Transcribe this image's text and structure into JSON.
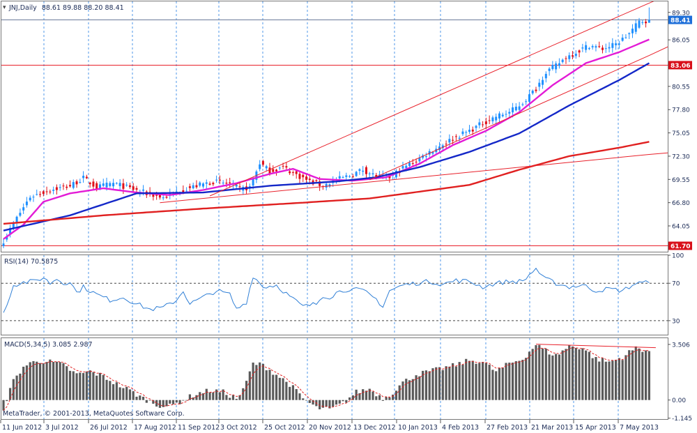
{
  "window": {
    "symbol_title": "JNJ,Daily",
    "ohlc_text": "88.61 89.88 88.20 88.41",
    "copyright": "MetaTrader, © 2001-2013, MetaQuotes Software Corp."
  },
  "colors": {
    "bull": "#1E90FF",
    "bear": "#E0101A",
    "ma_fast": "#E31BD6",
    "ma_mid": "#1428C8",
    "ma_slow": "#E02020",
    "trendline": "#E8202A",
    "grid": "#3C8CE6",
    "rsi_line": "#2F7FD6",
    "histogram": "#5A5A5A",
    "signal": "#E02020",
    "axis_text": "#1F3C7A"
  },
  "chart_data": [
    {
      "panel": "price",
      "type": "candlestick",
      "title": "JNJ,Daily",
      "values_text": "88.61 89.88 88.20 88.41",
      "y_ticks": [
        "89.30",
        "86.05",
        "83.06",
        "80.55",
        "77.80",
        "75.05",
        "72.30",
        "69.55",
        "66.80",
        "64.05",
        "61.70"
      ],
      "ylim": [
        61.0,
        90.6
      ],
      "price_labels": [
        {
          "value": "88.41",
          "style": "current"
        },
        {
          "value": "83.06",
          "style": "level"
        },
        {
          "value": "61.70",
          "style": "level"
        }
      ],
      "x_tick_labels": [
        "11 Jun 2012",
        "3 Jul 2012",
        "26 Jul 2012",
        "17 Aug 2012",
        "11 Sep 2012",
        "3 Oct 2012",
        "25 Oct 2012",
        "20 Nov 2012",
        "13 Dec 2012",
        "10 Jan 2013",
        "4 Feb 2013",
        "27 Feb 2013",
        "21 Mar 2013",
        "15 Apr 2013",
        "7 May 2013"
      ],
      "close_anchors": [
        [
          0,
          62.3
        ],
        [
          4,
          65.0
        ],
        [
          8,
          67.5
        ],
        [
          14,
          68.3
        ],
        [
          20,
          68.8
        ],
        [
          24,
          69.7
        ],
        [
          28,
          68.6
        ],
        [
          33,
          69.1
        ],
        [
          38,
          68.5
        ],
        [
          43,
          67.9
        ],
        [
          48,
          67.4
        ],
        [
          53,
          68.2
        ],
        [
          58,
          68.8
        ],
        [
          63,
          69.3
        ],
        [
          68,
          69.0
        ],
        [
          71,
          68.4
        ],
        [
          74,
          68.6
        ],
        [
          77,
          71.5
        ],
        [
          80,
          70.5
        ],
        [
          84,
          71.0
        ],
        [
          88,
          70.1
        ],
        [
          92,
          69.3
        ],
        [
          96,
          68.8
        ],
        [
          100,
          69.5
        ],
        [
          104,
          70.0
        ],
        [
          108,
          70.7
        ],
        [
          112,
          69.9
        ],
        [
          116,
          69.8
        ],
        [
          120,
          70.9
        ],
        [
          124,
          71.8
        ],
        [
          128,
          72.8
        ],
        [
          132,
          73.7
        ],
        [
          136,
          74.6
        ],
        [
          140,
          75.3
        ],
        [
          144,
          76.2
        ],
        [
          148,
          77.0
        ],
        [
          152,
          77.5
        ],
        [
          156,
          78.6
        ],
        [
          160,
          80.3
        ],
        [
          163,
          82.3
        ],
        [
          166,
          83.0
        ],
        [
          169,
          84.0
        ],
        [
          172,
          84.6
        ],
        [
          176,
          85.4
        ],
        [
          180,
          85.0
        ],
        [
          184,
          85.5
        ],
        [
          188,
          86.8
        ],
        [
          191,
          88.2
        ],
        [
          194,
          88.41
        ]
      ],
      "moving_averages": [
        {
          "color": "ma_fast",
          "points": [
            [
              0,
              62.5
            ],
            [
              6,
              64.2
            ],
            [
              12,
              66.9
            ],
            [
              20,
              67.9
            ],
            [
              30,
              68.5
            ],
            [
              40,
              68.0
            ],
            [
              50,
              67.7
            ],
            [
              60,
              68.3
            ],
            [
              70,
              69.1
            ],
            [
              80,
              70.2
            ],
            [
              87,
              70.8
            ],
            [
              95,
              69.6
            ],
            [
              105,
              69.4
            ],
            [
              115,
              69.8
            ],
            [
              125,
              71.4
            ],
            [
              135,
              73.6
            ],
            [
              145,
              75.3
            ],
            [
              155,
              77.5
            ],
            [
              165,
              80.7
            ],
            [
              175,
              83.3
            ],
            [
              185,
              84.6
            ],
            [
              194,
              86.1
            ]
          ]
        },
        {
          "color": "ma_mid",
          "points": [
            [
              0,
              63.5
            ],
            [
              20,
              65.3
            ],
            [
              40,
              67.9
            ],
            [
              60,
              68.0
            ],
            [
              80,
              68.8
            ],
            [
              100,
              69.3
            ],
            [
              112,
              69.8
            ],
            [
              125,
              71.0
            ],
            [
              140,
              72.8
            ],
            [
              155,
              75.0
            ],
            [
              170,
              78.3
            ],
            [
              185,
              81.3
            ],
            [
              194,
              83.3
            ]
          ]
        },
        {
          "color": "ma_slow",
          "points": [
            [
              0,
              64.3
            ],
            [
              30,
              65.3
            ],
            [
              60,
              66.1
            ],
            [
              90,
              66.8
            ],
            [
              110,
              67.3
            ],
            [
              125,
              68.1
            ],
            [
              140,
              68.9
            ],
            [
              155,
              70.7
            ],
            [
              170,
              72.3
            ],
            [
              185,
              73.3
            ],
            [
              194,
              74.0
            ]
          ]
        }
      ]
    },
    {
      "panel": "rsi",
      "type": "line",
      "title": "RSI(14) 70.5875",
      "y_ticks": [
        "100",
        "70",
        "30"
      ],
      "ylim": [
        15,
        100
      ],
      "levels": [
        70,
        30
      ],
      "anchors": [
        [
          0,
          38
        ],
        [
          3,
          68
        ],
        [
          6,
          71
        ],
        [
          9,
          72
        ],
        [
          12,
          76
        ],
        [
          14,
          70
        ],
        [
          16,
          75
        ],
        [
          18,
          70
        ],
        [
          20,
          72
        ],
        [
          22,
          60
        ],
        [
          24,
          66
        ],
        [
          28,
          58
        ],
        [
          32,
          52
        ],
        [
          36,
          55
        ],
        [
          40,
          48
        ],
        [
          44,
          42
        ],
        [
          48,
          44
        ],
        [
          52,
          52
        ],
        [
          54,
          62
        ],
        [
          56,
          48
        ],
        [
          60,
          55
        ],
        [
          64,
          62
        ],
        [
          68,
          58
        ],
        [
          70,
          42
        ],
        [
          73,
          50
        ],
        [
          75,
          78
        ],
        [
          78,
          66
        ],
        [
          82,
          68
        ],
        [
          86,
          56
        ],
        [
          90,
          45
        ],
        [
          94,
          48
        ],
        [
          96,
          57
        ],
        [
          98,
          55
        ],
        [
          100,
          60
        ],
        [
          104,
          64
        ],
        [
          108,
          62
        ],
        [
          112,
          53
        ],
        [
          114,
          45
        ],
        [
          116,
          62
        ],
        [
          120,
          68
        ],
        [
          124,
          70
        ],
        [
          128,
          72
        ],
        [
          132,
          69
        ],
        [
          136,
          73
        ],
        [
          140,
          72
        ],
        [
          144,
          66
        ],
        [
          148,
          70
        ],
        [
          152,
          72
        ],
        [
          156,
          72
        ],
        [
          160,
          86
        ],
        [
          162,
          76
        ],
        [
          166,
          70
        ],
        [
          170,
          66
        ],
        [
          174,
          68
        ],
        [
          178,
          62
        ],
        [
          182,
          64
        ],
        [
          186,
          62
        ],
        [
          190,
          70
        ],
        [
          194,
          70.6
        ]
      ]
    },
    {
      "panel": "macd",
      "type": "bar",
      "title": "MACD(5,34,5) 3.085 2.987",
      "y_ticks": [
        "3.506",
        "0.00",
        "-1.145"
      ],
      "ylim": [
        -1.2,
        3.9
      ],
      "hist_anchors": [
        [
          0,
          -0.5
        ],
        [
          3,
          1.2
        ],
        [
          6,
          2.1
        ],
        [
          10,
          2.5
        ],
        [
          14,
          2.4
        ],
        [
          18,
          2.2
        ],
        [
          22,
          1.6
        ],
        [
          26,
          1.8
        ],
        [
          30,
          1.5
        ],
        [
          34,
          1.0
        ],
        [
          38,
          0.6
        ],
        [
          42,
          0.1
        ],
        [
          46,
          -0.3
        ],
        [
          50,
          -0.4
        ],
        [
          54,
          0.0
        ],
        [
          58,
          0.4
        ],
        [
          62,
          0.6
        ],
        [
          66,
          0.5
        ],
        [
          70,
          0.1
        ],
        [
          72,
          0.6
        ],
        [
          75,
          2.3
        ],
        [
          78,
          2.2
        ],
        [
          82,
          1.6
        ],
        [
          86,
          1.0
        ],
        [
          90,
          0.1
        ],
        [
          94,
          -0.5
        ],
        [
          98,
          -0.6
        ],
        [
          102,
          -0.2
        ],
        [
          106,
          0.5
        ],
        [
          110,
          0.7
        ],
        [
          114,
          0.1
        ],
        [
          116,
          0.3
        ],
        [
          120,
          1.1
        ],
        [
          124,
          1.6
        ],
        [
          128,
          1.8
        ],
        [
          132,
          2.0
        ],
        [
          136,
          2.2
        ],
        [
          140,
          2.5
        ],
        [
          144,
          2.4
        ],
        [
          148,
          1.8
        ],
        [
          152,
          2.3
        ],
        [
          156,
          2.6
        ],
        [
          160,
          3.5
        ],
        [
          163,
          3.1
        ],
        [
          166,
          2.8
        ],
        [
          170,
          3.4
        ],
        [
          174,
          3.3
        ],
        [
          178,
          2.6
        ],
        [
          182,
          2.4
        ],
        [
          186,
          2.7
        ],
        [
          190,
          3.3
        ],
        [
          194,
          3.085
        ]
      ],
      "signal_lag": 2.5
    }
  ]
}
